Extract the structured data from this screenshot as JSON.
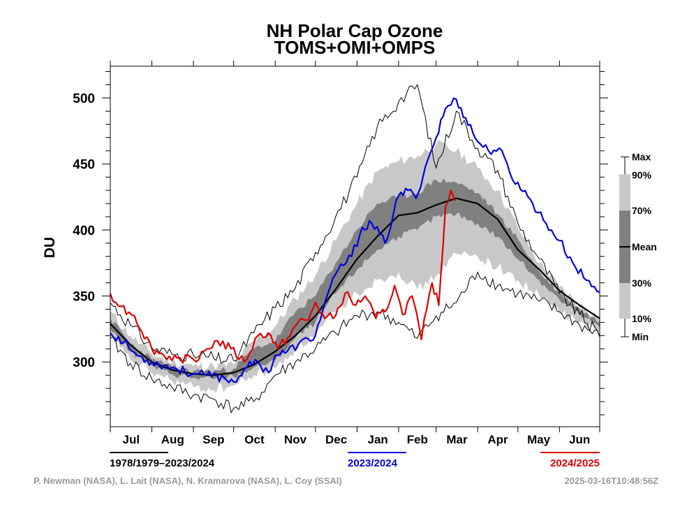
{
  "chart_data": {
    "type": "line",
    "title": "NH Polar Cap Ozone",
    "subtitle": "TOMS+OMI+OMPS",
    "xlabel": "",
    "ylabel": "DU",
    "ylim": [
      251,
      524
    ],
    "yticks": [
      300,
      350,
      400,
      450,
      500
    ],
    "ytick_labels": [
      "300",
      "350",
      "400",
      "450",
      "500"
    ],
    "y_minor_step": 10,
    "x_unit": "day of season (0 = Jul 1, 365 = Jun 30)",
    "xlim": [
      0,
      365
    ],
    "months": [
      "Jul",
      "Aug",
      "Sep",
      "Oct",
      "Nov",
      "Dec",
      "Jan",
      "Feb",
      "Mar",
      "Apr",
      "May",
      "Jun"
    ],
    "month_starts": [
      0,
      31,
      62,
      92,
      123,
      153,
      184,
      215,
      243,
      274,
      304,
      335
    ],
    "grid": false,
    "climatology": {
      "name": "1978/1979–2023/2024",
      "x": [
        0,
        15,
        31,
        46,
        62,
        77,
        92,
        107,
        123,
        138,
        153,
        168,
        184,
        199,
        215,
        229,
        243,
        258,
        274,
        289,
        304,
        320,
        335,
        350,
        365
      ],
      "max": [
        345,
        328,
        311,
        306,
        305,
        303,
        301,
        322,
        341,
        356,
        383,
        410,
        440,
        478,
        497,
        510,
        447,
        490,
        462,
        445,
        405,
        378,
        352,
        336,
        320
      ],
      "p90": [
        338,
        320,
        306,
        300,
        297,
        297,
        298,
        316,
        327,
        348,
        366,
        392,
        420,
        444,
        452,
        456,
        465,
        460,
        447,
        430,
        402,
        375,
        357,
        343,
        334
      ],
      "p70": [
        333,
        314,
        302,
        296,
        293,
        293,
        295,
        310,
        316,
        338,
        350,
        375,
        400,
        420,
        425,
        428,
        438,
        436,
        428,
        412,
        393,
        368,
        352,
        340,
        330
      ],
      "mean": [
        329,
        313,
        300,
        294,
        291,
        290,
        292,
        298,
        308,
        320,
        335,
        355,
        378,
        395,
        411,
        413,
        419,
        424,
        420,
        408,
        385,
        370,
        354,
        343,
        333
      ],
      "p30": [
        325,
        308,
        297,
        291,
        288,
        287,
        289,
        296,
        301,
        318,
        330,
        352,
        370,
        385,
        395,
        400,
        410,
        412,
        405,
        395,
        378,
        362,
        347,
        336,
        326
      ],
      "p10": [
        319,
        302,
        292,
        286,
        281,
        279,
        282,
        290,
        295,
        310,
        320,
        338,
        352,
        362,
        368,
        355,
        365,
        382,
        380,
        372,
        362,
        350,
        338,
        330,
        322
      ],
      "min": [
        318,
        299,
        287,
        281,
        275,
        272,
        265,
        270,
        290,
        300,
        310,
        322,
        335,
        338,
        330,
        318,
        335,
        345,
        368,
        358,
        352,
        346,
        338,
        328,
        319
      ]
    },
    "series": [
      {
        "name": "2023/2024",
        "color": "#0000dd",
        "x": [
          0,
          10,
          20,
          31,
          46,
          62,
          72,
          85,
          92,
          100,
          110,
          118,
          123,
          132,
          140,
          153,
          160,
          170,
          180,
          188,
          195,
          205,
          215,
          222,
          228,
          235,
          243,
          250,
          258,
          265,
          274,
          282,
          290,
          300,
          304,
          315,
          325,
          335,
          345,
          355,
          365
        ],
        "y": [
          322,
          315,
          305,
          300,
          296,
          291,
          290,
          288,
          285,
          295,
          300,
          292,
          305,
          308,
          313,
          320,
          345,
          370,
          380,
          402,
          405,
          390,
          426,
          430,
          424,
          448,
          470,
          492,
          499,
          485,
          467,
          460,
          462,
          438,
          436,
          420,
          405,
          392,
          375,
          362,
          353
        ]
      },
      {
        "name": "2024/2025",
        "color": "#dd0000",
        "x": [
          0,
          8,
          18,
          31,
          40,
          50,
          62,
          72,
          80,
          90,
          100,
          110,
          118,
          125,
          132,
          140,
          148,
          153,
          160,
          168,
          175,
          183,
          190,
          198,
          205,
          212,
          218,
          225,
          232,
          236,
          240,
          245,
          250,
          254,
          257
        ],
        "y": [
          352,
          342,
          335,
          310,
          305,
          303,
          302,
          310,
          316,
          310,
          300,
          320,
          322,
          310,
          318,
          330,
          332,
          345,
          333,
          335,
          352,
          343,
          350,
          333,
          338,
          358,
          336,
          350,
          317,
          340,
          360,
          343,
          418,
          430,
          422
        ]
      }
    ],
    "legend": {
      "box_labels": [
        "Max",
        "90%",
        "70%",
        "Mean",
        "30%",
        "10%",
        "Min"
      ],
      "placement": "right"
    }
  },
  "footer": {
    "legend_climatology": "1978/1979–2023/2024",
    "legend_blue": "2023/2024",
    "legend_red": "2024/2025",
    "credits": "P. Newman (NASA), L. Lait (NASA), N. Kramarova (NASA), L. Coy (SSAI)",
    "timestamp": "2025-03-16T10:48:56Z"
  },
  "colors": {
    "band_outer": "#c8c8c8",
    "band_inner": "#808080",
    "mean": "#000000",
    "extremes": "#000000",
    "credit_text": "#999999"
  }
}
